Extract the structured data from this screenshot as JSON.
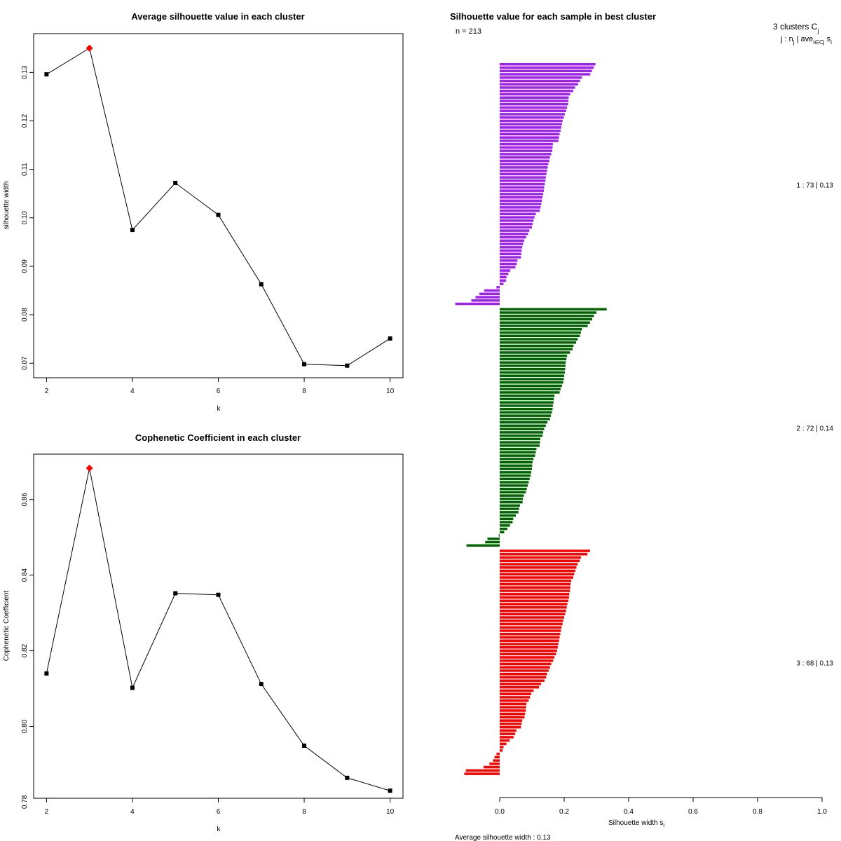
{
  "chart_data": [
    {
      "type": "line",
      "title": "Average silhouette value in each cluster",
      "xlabel": "k",
      "ylabel": "silhouette width",
      "x": [
        2,
        3,
        4,
        5,
        6,
        7,
        8,
        9,
        10
      ],
      "series": [
        {
          "values": [
            0.1296,
            0.135,
            0.0975,
            0.1072,
            0.1006,
            0.0863,
            0.0698,
            0.0695,
            0.0751
          ]
        }
      ],
      "highlight": {
        "x": 3,
        "value": 0.135,
        "color": "#ff0000"
      },
      "xlim": [
        1.7,
        10.3
      ],
      "ylim": [
        0.067,
        0.138
      ],
      "xticks": [
        2,
        4,
        6,
        8,
        10
      ],
      "yticks": [
        0.07,
        0.08,
        0.09,
        0.1,
        0.11,
        0.12,
        0.13
      ],
      "ytick_labels": [
        "0.07",
        "0.08",
        "0.09",
        "0.10",
        "0.11",
        "0.12",
        "0.13"
      ],
      "grid": false,
      "line_color": "#000000",
      "marker_color": "#000000"
    },
    {
      "type": "line",
      "title": "Cophenetic Coefficient in each cluster",
      "xlabel": "k",
      "ylabel": "Cophenetic Coefficient",
      "x": [
        2,
        3,
        4,
        5,
        6,
        7,
        8,
        9,
        10
      ],
      "series": [
        {
          "values": [
            0.814,
            0.8683,
            0.8102,
            0.8352,
            0.8348,
            0.8112,
            0.7949,
            0.7864,
            0.783
          ]
        }
      ],
      "highlight": {
        "x": 3,
        "value": 0.8683,
        "color": "#ff0000"
      },
      "xlim": [
        1.7,
        10.3
      ],
      "ylim": [
        0.781,
        0.872
      ],
      "xticks": [
        2,
        4,
        6,
        8,
        10
      ],
      "yticks": [
        0.8,
        0.82,
        0.84,
        0.86
      ],
      "ytick_labels": [
        "0.80",
        "0.82",
        "0.84",
        "0.86"
      ],
      "ytick_extra": {
        "value": 0.78,
        "label": "0.78"
      },
      "grid": false,
      "line_color": "#000000",
      "marker_color": "#000000"
    },
    {
      "type": "bar",
      "orientation": "horizontal",
      "title": "Silhouette value for each sample in best cluster",
      "subtitle": "n = 213",
      "xlabel": "Silhouette width s",
      "xlabel_sub": "i",
      "xlim": [
        0.0,
        1.0
      ],
      "xticks": [
        0.0,
        0.2,
        0.4,
        0.6,
        0.8,
        1.0
      ],
      "xtick_labels": [
        "0.0",
        "0.2",
        "0.4",
        "0.6",
        "0.8",
        "1.0"
      ],
      "legend_header": "3 clusters C",
      "legend_header_sub": "j",
      "legend_header_line2": "j :  n",
      "legend_header_line2_sub": "j",
      "legend_header_line2_rest": " | ave",
      "legend_header_line2_sub2": "i∈Cj",
      "legend_header_line2_end": " s",
      "legend_header_line2_end_sub": "i",
      "footer": "Average silhouette width :  0.13",
      "clusters": [
        {
          "id": 1,
          "n": 73,
          "avg": 0.13,
          "label": "1 :  73  |  0.13",
          "color": "#a020f0",
          "values": [
            0.297,
            0.292,
            0.286,
            0.281,
            0.255,
            0.249,
            0.243,
            0.234,
            0.228,
            0.219,
            0.214,
            0.213,
            0.212,
            0.209,
            0.206,
            0.202,
            0.199,
            0.195,
            0.193,
            0.191,
            0.189,
            0.186,
            0.184,
            0.182,
            0.165,
            0.164,
            0.163,
            0.16,
            0.156,
            0.154,
            0.151,
            0.149,
            0.147,
            0.145,
            0.143,
            0.142,
            0.14,
            0.138,
            0.137,
            0.135,
            0.133,
            0.131,
            0.129,
            0.127,
            0.124,
            0.112,
            0.108,
            0.105,
            0.102,
            0.1,
            0.092,
            0.088,
            0.082,
            0.076,
            0.073,
            0.07,
            0.068,
            0.067,
            0.066,
            0.055,
            0.053,
            0.049,
            0.033,
            0.027,
            0.021,
            0.02,
            0.012,
            -0.01,
            -0.048,
            -0.063,
            -0.075,
            -0.088,
            -0.138
          ]
        },
        {
          "id": 2,
          "n": 72,
          "avg": 0.14,
          "label": "2 :  72  |  0.14",
          "color": "#006400",
          "values": [
            0.332,
            0.3,
            0.292,
            0.287,
            0.28,
            0.273,
            0.255,
            0.252,
            0.249,
            0.242,
            0.237,
            0.229,
            0.226,
            0.218,
            0.209,
            0.207,
            0.205,
            0.204,
            0.203,
            0.202,
            0.2,
            0.199,
            0.197,
            0.193,
            0.189,
            0.186,
            0.17,
            0.168,
            0.167,
            0.165,
            0.164,
            0.162,
            0.159,
            0.156,
            0.148,
            0.143,
            0.138,
            0.135,
            0.133,
            0.126,
            0.125,
            0.124,
            0.114,
            0.112,
            0.11,
            0.105,
            0.102,
            0.101,
            0.1,
            0.098,
            0.096,
            0.093,
            0.09,
            0.087,
            0.084,
            0.081,
            0.075,
            0.072,
            0.071,
            0.063,
            0.06,
            0.058,
            0.05,
            0.042,
            0.04,
            0.032,
            0.024,
            0.014,
            -0.003,
            -0.038,
            -0.045,
            -0.103
          ]
        },
        {
          "id": 3,
          "n": 68,
          "avg": 0.13,
          "label": "3 :  68  |  0.13",
          "color": "#ff0000",
          "values": [
            0.28,
            0.272,
            0.252,
            0.248,
            0.242,
            0.238,
            0.235,
            0.231,
            0.228,
            0.222,
            0.22,
            0.219,
            0.218,
            0.216,
            0.215,
            0.213,
            0.21,
            0.208,
            0.206,
            0.203,
            0.2,
            0.197,
            0.195,
            0.192,
            0.19,
            0.188,
            0.186,
            0.184,
            0.182,
            0.18,
            0.178,
            0.175,
            0.17,
            0.166,
            0.16,
            0.156,
            0.152,
            0.147,
            0.144,
            0.139,
            0.128,
            0.122,
            0.105,
            0.098,
            0.094,
            0.09,
            0.083,
            0.082,
            0.081,
            0.079,
            0.077,
            0.07,
            0.068,
            0.066,
            0.052,
            0.048,
            0.043,
            0.031,
            0.021,
            0.012,
            0.009,
            -0.01,
            -0.016,
            -0.021,
            -0.032,
            -0.05,
            -0.105,
            -0.11
          ]
        }
      ]
    }
  ]
}
